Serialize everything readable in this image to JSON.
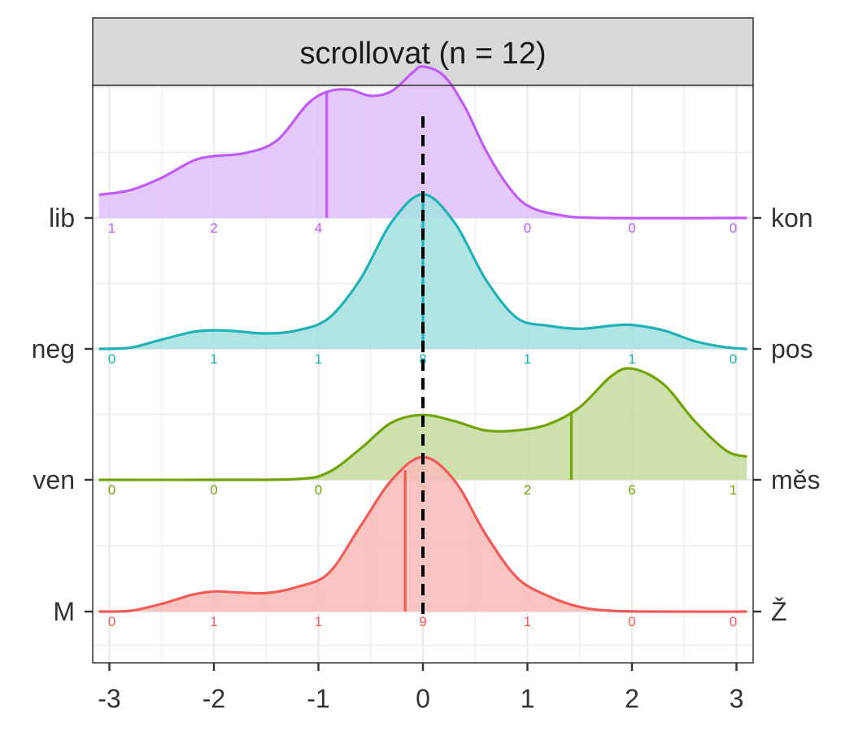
{
  "chart_data": {
    "type": "ridgeline",
    "facet_title": "scrollovat (n = 12)",
    "xlim": [
      -3,
      3
    ],
    "x_ticks": [
      "-3",
      "-2",
      "-1",
      "0",
      "1",
      "2",
      "3"
    ],
    "reference_line_x": 0,
    "grid": true,
    "series": [
      {
        "left_label": "M",
        "right_label": "Ž",
        "color": "#F05B58",
        "fill": "#F8BBB8",
        "mean": -0.17,
        "counts": [
          "0",
          "1",
          "1",
          "9",
          "1",
          "0",
          "0"
        ],
        "density": [
          [
            -3.1,
            0.0
          ],
          [
            -2.8,
            0.005
          ],
          [
            -2.5,
            0.05
          ],
          [
            -2.2,
            0.11
          ],
          [
            -2.0,
            0.13
          ],
          [
            -1.8,
            0.125
          ],
          [
            -1.5,
            0.12
          ],
          [
            -1.2,
            0.16
          ],
          [
            -0.9,
            0.25
          ],
          [
            -0.6,
            0.55
          ],
          [
            -0.3,
            0.85
          ],
          [
            0.0,
            1.0
          ],
          [
            0.3,
            0.85
          ],
          [
            0.6,
            0.5
          ],
          [
            0.9,
            0.22
          ],
          [
            1.2,
            0.1
          ],
          [
            1.5,
            0.03
          ],
          [
            1.8,
            0.005
          ],
          [
            2.2,
            0.0
          ],
          [
            3.1,
            0.0
          ]
        ]
      },
      {
        "left_label": "ven",
        "right_label": "měs",
        "color": "#72A30A",
        "fill": "#C5DB9C",
        "mean": 1.42,
        "counts": [
          "0",
          "0",
          "0",
          "3",
          "2",
          "6",
          "1"
        ],
        "density": [
          [
            -3.1,
            0.0
          ],
          [
            -2.0,
            0.0
          ],
          [
            -1.2,
            0.005
          ],
          [
            -0.9,
            0.05
          ],
          [
            -0.6,
            0.2
          ],
          [
            -0.3,
            0.37
          ],
          [
            0.0,
            0.42
          ],
          [
            0.3,
            0.38
          ],
          [
            0.6,
            0.32
          ],
          [
            0.9,
            0.32
          ],
          [
            1.2,
            0.36
          ],
          [
            1.5,
            0.47
          ],
          [
            1.8,
            0.67
          ],
          [
            2.0,
            0.72
          ],
          [
            2.3,
            0.62
          ],
          [
            2.6,
            0.38
          ],
          [
            2.9,
            0.19
          ],
          [
            3.1,
            0.15
          ]
        ]
      },
      {
        "left_label": "neg",
        "right_label": "pos",
        "color": "#20B2B5",
        "fill": "#A3E0E1",
        "mean": 0.0,
        "counts": [
          "0",
          "1",
          "1",
          "8",
          "1",
          "1",
          "0"
        ],
        "density": [
          [
            -3.1,
            0.0
          ],
          [
            -2.8,
            0.008
          ],
          [
            -2.5,
            0.06
          ],
          [
            -2.2,
            0.11
          ],
          [
            -2.0,
            0.12
          ],
          [
            -1.8,
            0.115
          ],
          [
            -1.5,
            0.1
          ],
          [
            -1.2,
            0.12
          ],
          [
            -0.9,
            0.2
          ],
          [
            -0.6,
            0.45
          ],
          [
            -0.3,
            0.82
          ],
          [
            0.0,
            1.0
          ],
          [
            0.3,
            0.82
          ],
          [
            0.6,
            0.45
          ],
          [
            0.9,
            0.2
          ],
          [
            1.2,
            0.15
          ],
          [
            1.5,
            0.13
          ],
          [
            1.8,
            0.15
          ],
          [
            2.0,
            0.155
          ],
          [
            2.3,
            0.12
          ],
          [
            2.6,
            0.05
          ],
          [
            2.9,
            0.01
          ],
          [
            3.1,
            0.0
          ]
        ]
      },
      {
        "left_label": "lib",
        "right_label": "kon",
        "color": "#C05CF6",
        "fill": "#E2BFFB",
        "mean": -0.92,
        "counts": [
          "1",
          "2",
          "4",
          "5",
          "0",
          "0",
          "0"
        ],
        "density": [
          [
            -3.1,
            0.15
          ],
          [
            -2.8,
            0.18
          ],
          [
            -2.5,
            0.26
          ],
          [
            -2.2,
            0.37
          ],
          [
            -2.0,
            0.4
          ],
          [
            -1.7,
            0.42
          ],
          [
            -1.4,
            0.5
          ],
          [
            -1.1,
            0.74
          ],
          [
            -0.9,
            0.82
          ],
          [
            -0.7,
            0.83
          ],
          [
            -0.5,
            0.79
          ],
          [
            -0.3,
            0.82
          ],
          [
            -0.1,
            0.94
          ],
          [
            0.0,
            0.98
          ],
          [
            0.2,
            0.92
          ],
          [
            0.4,
            0.72
          ],
          [
            0.6,
            0.44
          ],
          [
            0.8,
            0.22
          ],
          [
            1.0,
            0.08
          ],
          [
            1.3,
            0.02
          ],
          [
            1.7,
            0.0
          ],
          [
            3.1,
            0.0
          ]
        ]
      }
    ]
  }
}
